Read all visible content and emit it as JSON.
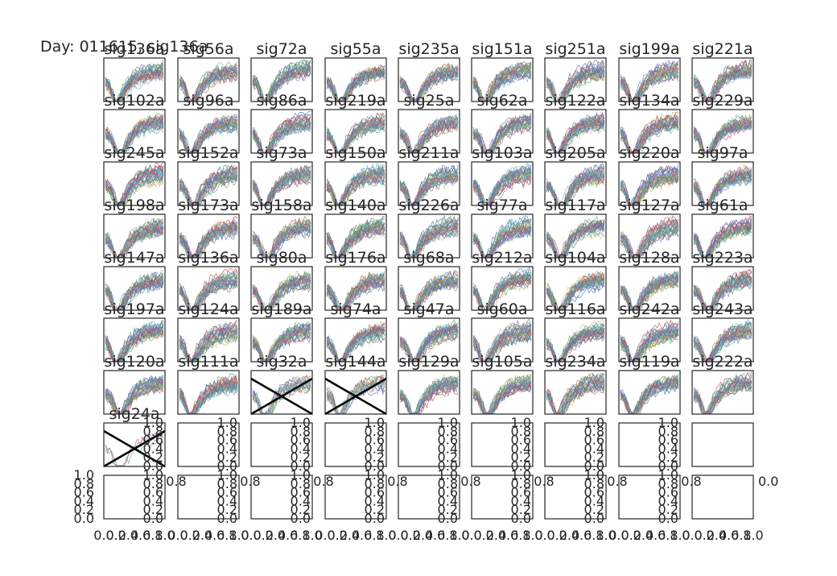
{
  "figure": {
    "title": "Day: 011615, sig136a"
  },
  "chart_data": {
    "type": "line",
    "description_free": true,
    "grid_rows": 9,
    "grid_cols": 9,
    "waveform_colors": [
      "#4c72b0",
      "#55a868",
      "#c44e52",
      "#8172b2",
      "#ccb974",
      "#64b5cd"
    ],
    "cross_color": "#000000",
    "panels": [
      {
        "row": 0,
        "col": 0,
        "title": "sig136a",
        "kind": "wave"
      },
      {
        "row": 0,
        "col": 1,
        "title": "sig56a",
        "kind": "wave"
      },
      {
        "row": 0,
        "col": 2,
        "title": "sig72a",
        "kind": "wave"
      },
      {
        "row": 0,
        "col": 3,
        "title": "sig55a",
        "kind": "wave"
      },
      {
        "row": 0,
        "col": 4,
        "title": "sig235a",
        "kind": "wave"
      },
      {
        "row": 0,
        "col": 5,
        "title": "sig151a",
        "kind": "wave"
      },
      {
        "row": 0,
        "col": 6,
        "title": "sig251a",
        "kind": "wave"
      },
      {
        "row": 0,
        "col": 7,
        "title": "sig199a",
        "kind": "wave"
      },
      {
        "row": 0,
        "col": 8,
        "title": "sig221a",
        "kind": "wave"
      },
      {
        "row": 1,
        "col": 0,
        "title": "sig102a",
        "kind": "wave"
      },
      {
        "row": 1,
        "col": 1,
        "title": "sig96a",
        "kind": "wave"
      },
      {
        "row": 1,
        "col": 2,
        "title": "sig86a",
        "kind": "wave"
      },
      {
        "row": 1,
        "col": 3,
        "title": "sig219a",
        "kind": "wave"
      },
      {
        "row": 1,
        "col": 4,
        "title": "sig25a",
        "kind": "wave"
      },
      {
        "row": 1,
        "col": 5,
        "title": "sig62a",
        "kind": "wave"
      },
      {
        "row": 1,
        "col": 6,
        "title": "sig122a",
        "kind": "wave"
      },
      {
        "row": 1,
        "col": 7,
        "title": "sig134a",
        "kind": "wave"
      },
      {
        "row": 1,
        "col": 8,
        "title": "sig229a",
        "kind": "wave"
      },
      {
        "row": 2,
        "col": 0,
        "title": "sig245a",
        "kind": "wave"
      },
      {
        "row": 2,
        "col": 1,
        "title": "sig152a",
        "kind": "wave"
      },
      {
        "row": 2,
        "col": 2,
        "title": "sig73a",
        "kind": "wave"
      },
      {
        "row": 2,
        "col": 3,
        "title": "sig150a",
        "kind": "wave"
      },
      {
        "row": 2,
        "col": 4,
        "title": "sig211a",
        "kind": "wave"
      },
      {
        "row": 2,
        "col": 5,
        "title": "sig103a",
        "kind": "wave"
      },
      {
        "row": 2,
        "col": 6,
        "title": "sig205a",
        "kind": "wave"
      },
      {
        "row": 2,
        "col": 7,
        "title": "sig220a",
        "kind": "wave"
      },
      {
        "row": 2,
        "col": 8,
        "title": "sig97a",
        "kind": "wave"
      },
      {
        "row": 3,
        "col": 0,
        "title": "sig198a",
        "kind": "wave"
      },
      {
        "row": 3,
        "col": 1,
        "title": "sig173a",
        "kind": "wave"
      },
      {
        "row": 3,
        "col": 2,
        "title": "sig158a",
        "kind": "wave"
      },
      {
        "row": 3,
        "col": 3,
        "title": "sig140a",
        "kind": "wave"
      },
      {
        "row": 3,
        "col": 4,
        "title": "sig226a",
        "kind": "wave"
      },
      {
        "row": 3,
        "col": 5,
        "title": "sig77a",
        "kind": "wave"
      },
      {
        "row": 3,
        "col": 6,
        "title": "sig117a",
        "kind": "wave"
      },
      {
        "row": 3,
        "col": 7,
        "title": "sig127a",
        "kind": "wave"
      },
      {
        "row": 3,
        "col": 8,
        "title": "sig61a",
        "kind": "wave"
      },
      {
        "row": 4,
        "col": 0,
        "title": "sig147a",
        "kind": "wave"
      },
      {
        "row": 4,
        "col": 1,
        "title": "sig136a",
        "kind": "wave"
      },
      {
        "row": 4,
        "col": 2,
        "title": "sig80a",
        "kind": "wave"
      },
      {
        "row": 4,
        "col": 3,
        "title": "sig176a",
        "kind": "wave"
      },
      {
        "row": 4,
        "col": 4,
        "title": "sig68a",
        "kind": "wave"
      },
      {
        "row": 4,
        "col": 5,
        "title": "sig212a",
        "kind": "wave"
      },
      {
        "row": 4,
        "col": 6,
        "title": "sig104a",
        "kind": "wave"
      },
      {
        "row": 4,
        "col": 7,
        "title": "sig128a",
        "kind": "wave"
      },
      {
        "row": 4,
        "col": 8,
        "title": "sig223a",
        "kind": "wave"
      },
      {
        "row": 5,
        "col": 0,
        "title": "sig197a",
        "kind": "wave"
      },
      {
        "row": 5,
        "col": 1,
        "title": "sig124a",
        "kind": "wave"
      },
      {
        "row": 5,
        "col": 2,
        "title": "sig189a",
        "kind": "wave"
      },
      {
        "row": 5,
        "col": 3,
        "title": "sig74a",
        "kind": "wave"
      },
      {
        "row": 5,
        "col": 4,
        "title": "sig47a",
        "kind": "wave"
      },
      {
        "row": 5,
        "col": 5,
        "title": "sig60a",
        "kind": "wave"
      },
      {
        "row": 5,
        "col": 6,
        "title": "sig116a",
        "kind": "wave"
      },
      {
        "row": 5,
        "col": 7,
        "title": "sig242a",
        "kind": "wave"
      },
      {
        "row": 5,
        "col": 8,
        "title": "sig243a",
        "kind": "wave"
      },
      {
        "row": 6,
        "col": 0,
        "title": "sig120a",
        "kind": "wave"
      },
      {
        "row": 6,
        "col": 1,
        "title": "sig111a",
        "kind": "wave"
      },
      {
        "row": 6,
        "col": 2,
        "title": "sig32a",
        "kind": "cross"
      },
      {
        "row": 6,
        "col": 3,
        "title": "sig144a",
        "kind": "cross"
      },
      {
        "row": 6,
        "col": 4,
        "title": "sig129a",
        "kind": "wave"
      },
      {
        "row": 6,
        "col": 5,
        "title": "sig105a",
        "kind": "wave"
      },
      {
        "row": 6,
        "col": 6,
        "title": "sig234a",
        "kind": "wave"
      },
      {
        "row": 6,
        "col": 7,
        "title": "sig119a",
        "kind": "wave"
      },
      {
        "row": 6,
        "col": 8,
        "title": "sig222a",
        "kind": "wave"
      },
      {
        "row": 7,
        "col": 0,
        "title": "sig24a",
        "kind": "cross",
        "yticks": true
      },
      {
        "row": 7,
        "col": 1,
        "title": "",
        "kind": "empty",
        "yticks": true
      },
      {
        "row": 7,
        "col": 2,
        "title": "",
        "kind": "empty",
        "yticks": true
      },
      {
        "row": 7,
        "col": 3,
        "title": "",
        "kind": "empty",
        "yticks": true
      },
      {
        "row": 7,
        "col": 4,
        "title": "",
        "kind": "empty",
        "yticks": true
      },
      {
        "row": 7,
        "col": 5,
        "title": "",
        "kind": "empty",
        "yticks": true
      },
      {
        "row": 7,
        "col": 6,
        "title": "",
        "kind": "empty",
        "yticks": true
      },
      {
        "row": 7,
        "col": 7,
        "title": "",
        "kind": "empty",
        "yticks": true
      },
      {
        "row": 7,
        "col": 8,
        "title": "",
        "kind": "empty"
      },
      {
        "row": 8,
        "col": 0,
        "title": "",
        "kind": "empty",
        "yticks": true,
        "xticks": true,
        "leftticks": true
      },
      {
        "row": 8,
        "col": 1,
        "title": "",
        "kind": "empty",
        "yticks": true,
        "xticks": true
      },
      {
        "row": 8,
        "col": 2,
        "title": "",
        "kind": "empty",
        "yticks": true,
        "xticks": true
      },
      {
        "row": 8,
        "col": 3,
        "title": "",
        "kind": "empty",
        "yticks": true,
        "xticks": true
      },
      {
        "row": 8,
        "col": 4,
        "title": "",
        "kind": "empty",
        "yticks": true,
        "xticks": true
      },
      {
        "row": 8,
        "col": 5,
        "title": "",
        "kind": "empty",
        "yticks": true,
        "xticks": true
      },
      {
        "row": 8,
        "col": 6,
        "title": "",
        "kind": "empty",
        "yticks": true,
        "xticks": true
      },
      {
        "row": 8,
        "col": 7,
        "title": "",
        "kind": "empty",
        "yticks": true,
        "xticks": true
      },
      {
        "row": 8,
        "col": 8,
        "title": "",
        "kind": "empty",
        "xticks": true
      }
    ],
    "ytick_labels": [
      "1.0",
      "0.8",
      "0.6",
      "0.4",
      "0.2",
      "0.0"
    ],
    "xtick_labels": [
      "0.0",
      "0.2",
      "0.4",
      "0.6",
      "0.8",
      "1.0"
    ],
    "row8_top_label": "0.8",
    "row8_right_label": "0.0",
    "ylim": [
      0,
      1
    ],
    "xlim": [
      0,
      1
    ],
    "grid": false
  }
}
